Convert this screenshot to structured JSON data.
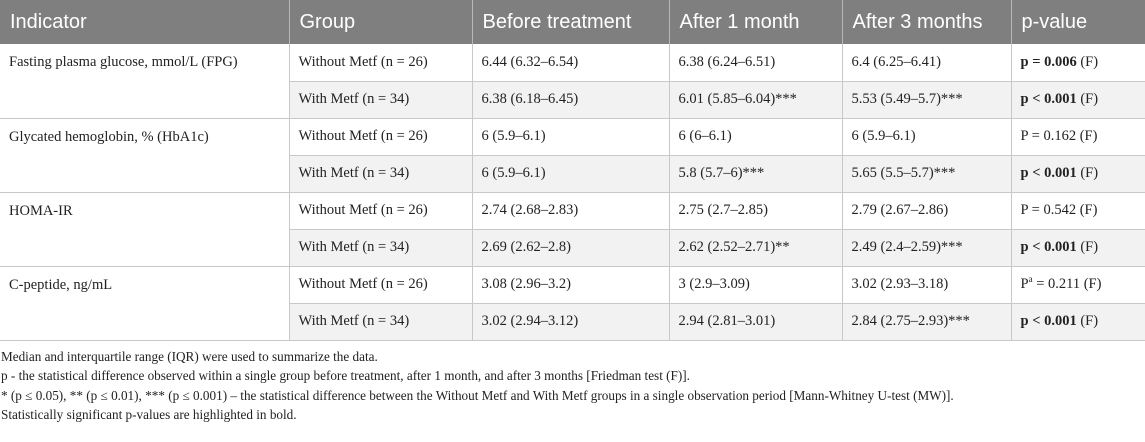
{
  "table": {
    "headers": [
      "Indicator",
      "Group",
      "Before treatment",
      "After 1 month",
      "After 3 months",
      "p-value"
    ],
    "groups": [
      {
        "indicator": "Fasting plasma glucose, mmol/L (FPG)",
        "rows": [
          {
            "group": "Without Metf (n = 26)",
            "before": "6.44 (6.32–6.54)",
            "m1": "6.38 (6.24–6.51)",
            "m3": "6.4 (6.25–6.41)",
            "p_bold": "p = 0.006",
            "p_sup": "",
            "p_rest": " (F)"
          },
          {
            "group": "With Metf (n = 34)",
            "before": "6.38 (6.18–6.45)",
            "m1": "6.01 (5.85–6.04)***",
            "m3": "5.53 (5.49–5.7)***",
            "p_bold": "p < 0.001",
            "p_sup": "",
            "p_rest": " (F)"
          }
        ]
      },
      {
        "indicator": "Glycated hemoglobin, % (HbA1c)",
        "rows": [
          {
            "group": "Without Metf (n = 26)",
            "before": "6 (5.9–6.1)",
            "m1": "6 (6–6.1)",
            "m3": "6 (5.9–6.1)",
            "p_bold": "",
            "p_sup": "",
            "p_rest": "P = 0.162 (F)"
          },
          {
            "group": "With Metf (n = 34)",
            "before": "6 (5.9–6.1)",
            "m1": "5.8 (5.7–6)***",
            "m3": "5.65 (5.5–5.7)***",
            "p_bold": "p < 0.001",
            "p_sup": "",
            "p_rest": " (F)"
          }
        ]
      },
      {
        "indicator": "HOMA-IR",
        "rows": [
          {
            "group": "Without Metf (n = 26)",
            "before": "2.74 (2.68–2.83)",
            "m1": "2.75 (2.7–2.85)",
            "m3": "2.79 (2.67–2.86)",
            "p_bold": "",
            "p_sup": "",
            "p_rest": "P = 0.542 (F)"
          },
          {
            "group": "With Metf (n = 34)",
            "before": "2.69 (2.62–2.8)",
            "m1": "2.62 (2.52–2.71)**",
            "m3": "2.49 (2.4–2.59)***",
            "p_bold": "p < 0.001",
            "p_sup": "",
            "p_rest": " (F)"
          }
        ]
      },
      {
        "indicator": "C-peptide, ng/mL",
        "rows": [
          {
            "group": "Without Metf (n = 26)",
            "before": "3.08 (2.96–3.2)",
            "m1": "3 (2.9–3.09)",
            "m3": "3.02 (2.93–3.18)",
            "p_bold": "",
            "p_lead": "P",
            "p_sup": "a",
            "p_rest": " = 0.211 (F)"
          },
          {
            "group": "With Metf (n = 34)",
            "before": "3.02 (2.94–3.12)",
            "m1": "2.94 (2.81–3.01)",
            "m3": "2.84 (2.75–2.93)***",
            "p_bold": "p < 0.001",
            "p_sup": "",
            "p_rest": " (F)"
          }
        ]
      }
    ]
  },
  "notes": [
    "Median and interquartile range (IQR) were used to summarize the data.",
    "p - the statistical difference observed within a single group before treatment, after 1 month, and after 3 months [Friedman test (F)].",
    "* (p ≤ 0.05), ** (p ≤ 0.01), *** (p ≤ 0.001) – the statistical difference between the Without Metf and With Metf groups in a single observation period [Mann-Whitney U-test (MW)].",
    "Statistically significant p-values are highlighted in bold."
  ],
  "colors": {
    "header_bg": "#7f7f7f",
    "header_text": "#ffffff",
    "shade_row": "#f2f2f2",
    "grid": "#c8c8c8"
  }
}
